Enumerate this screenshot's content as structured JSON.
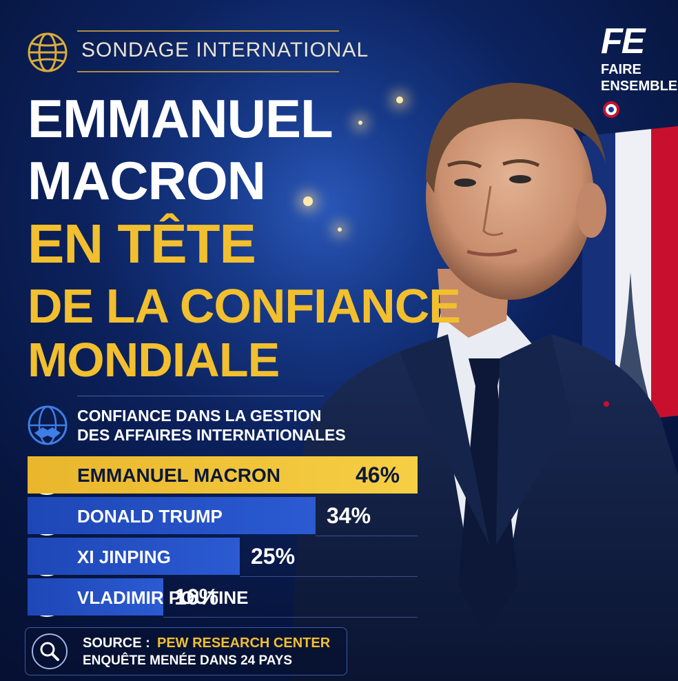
{
  "header": {
    "kicker": "SONDAGE INTERNATIONAL",
    "title_line1": "EMMANUEL",
    "title_line2": "MACRON",
    "title_line3": "EN TÊTE",
    "title_line4": "DE LA CONFIANCE",
    "title_line5": "MONDIALE"
  },
  "logo": {
    "mark": "FE",
    "line1": "FAIRE",
    "line2": "ENSEMBLE"
  },
  "section": {
    "line1": "CONFIANCE DANS LA GESTION",
    "line2": "DES AFFAIRES INTERNATIONALES"
  },
  "chart_data": {
    "type": "bar",
    "categories": [
      "EMMANUEL MACRON",
      "DONALD TRUMP",
      "XI JINPING",
      "VLADIMIR POUTINE"
    ],
    "values": [
      46,
      34,
      25,
      16
    ],
    "value_labels": [
      "46%",
      "34%",
      "25%",
      "16%"
    ],
    "orientation": "horizontal",
    "colors": [
      "#f2c233",
      "#2452c4",
      "#2452c4",
      "#2452c4"
    ]
  },
  "footer": {
    "source_prefix": "SOURCE :",
    "source_name": "PEW RESEARCH CENTER",
    "note": "ENQUÊTE MENÉE DANS 24 PAYS"
  },
  "colors": {
    "gold": "#f2bf2f",
    "navy": "#08163f",
    "blue_bar": "#2452c4"
  },
  "icons": {
    "globe": "globe-icon",
    "handshake": "handshake-globe-icon",
    "search": "search-icon",
    "cockade": "french-cockade-icon"
  }
}
